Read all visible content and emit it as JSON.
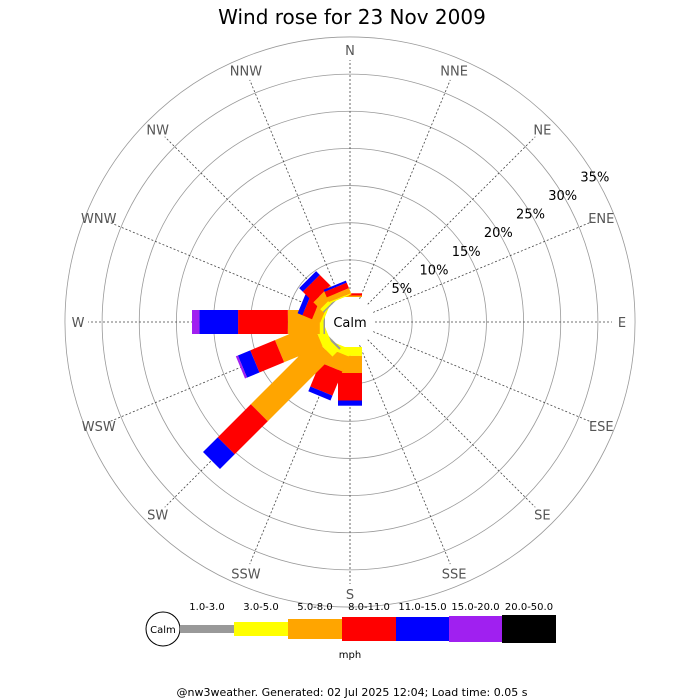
{
  "title": "Wind rose for 23 Nov 2009",
  "footer": "@nw3weather. Generated: 02 Jul 2025 12:04; Load time: 0.05 s",
  "units": "mph",
  "calm_label": "Calm",
  "chart_data": {
    "type": "windrose",
    "title": "Wind rose for 23 Nov 2009",
    "directions": [
      "N",
      "NNE",
      "NE",
      "ENE",
      "E",
      "ESE",
      "SE",
      "SSE",
      "S",
      "SSW",
      "SW",
      "WSW",
      "W",
      "WNW",
      "NW",
      "NNW"
    ],
    "rings": [
      5,
      10,
      15,
      20,
      25,
      30,
      35
    ],
    "ring_labels": [
      "5%",
      "10%",
      "15%",
      "20%",
      "25%",
      "30%",
      "35%"
    ],
    "speed_bins": [
      {
        "label": "1.0-3.0",
        "color": "#999999"
      },
      {
        "label": "3.0-5.0",
        "color": "#ffff00"
      },
      {
        "label": "5.0-8.0",
        "color": "#ffa500"
      },
      {
        "label": "8.0-11.0",
        "color": "#ff0000"
      },
      {
        "label": "11.0-15.0",
        "color": "#0000ff"
      },
      {
        "label": "15.0-20.0",
        "color": "#a020f0"
      },
      {
        "label": "20.0-50.0",
        "color": "#000000"
      }
    ],
    "units": "mph",
    "calm_label": "Calm",
    "bins_percent": {
      "N": [
        0,
        0,
        0.2,
        0.3,
        0,
        0,
        0
      ],
      "NNE": [
        0,
        0,
        0,
        0,
        0,
        0,
        0
      ],
      "NE": [
        0,
        0,
        0,
        0,
        0,
        0,
        0
      ],
      "ENE": [
        0,
        0,
        0,
        0,
        0,
        0,
        0
      ],
      "E": [
        0,
        0,
        0,
        0,
        0,
        0,
        0
      ],
      "ESE": [
        0,
        0,
        0,
        0,
        0,
        0,
        0
      ],
      "SE": [
        0,
        0,
        0,
        0,
        0,
        0,
        0
      ],
      "SSE": [
        0,
        0,
        0,
        0,
        0,
        0,
        0
      ],
      "S": [
        0,
        1.2,
        2.3,
        3.7,
        0.7,
        0,
        0
      ],
      "SSW": [
        0,
        1.0,
        2.2,
        3.5,
        0.7,
        0,
        0
      ],
      "SW": [
        0.3,
        1.3,
        12.3,
        6.3,
        2.8,
        0,
        0
      ],
      "WSW": [
        0,
        1.3,
        5.6,
        3.6,
        1.8,
        0.3,
        0
      ],
      "W": [
        0.2,
        0.5,
        4.3,
        6.7,
        5.2,
        1.0,
        0
      ],
      "WNW": [
        0,
        0.3,
        1.2,
        1.4,
        0.7,
        0,
        0
      ],
      "NW": [
        0.2,
        0.5,
        1.3,
        2.0,
        0.7,
        0,
        0
      ],
      "NNW": [
        0,
        0.2,
        0.7,
        0.8,
        0.3,
        0,
        0
      ]
    }
  }
}
